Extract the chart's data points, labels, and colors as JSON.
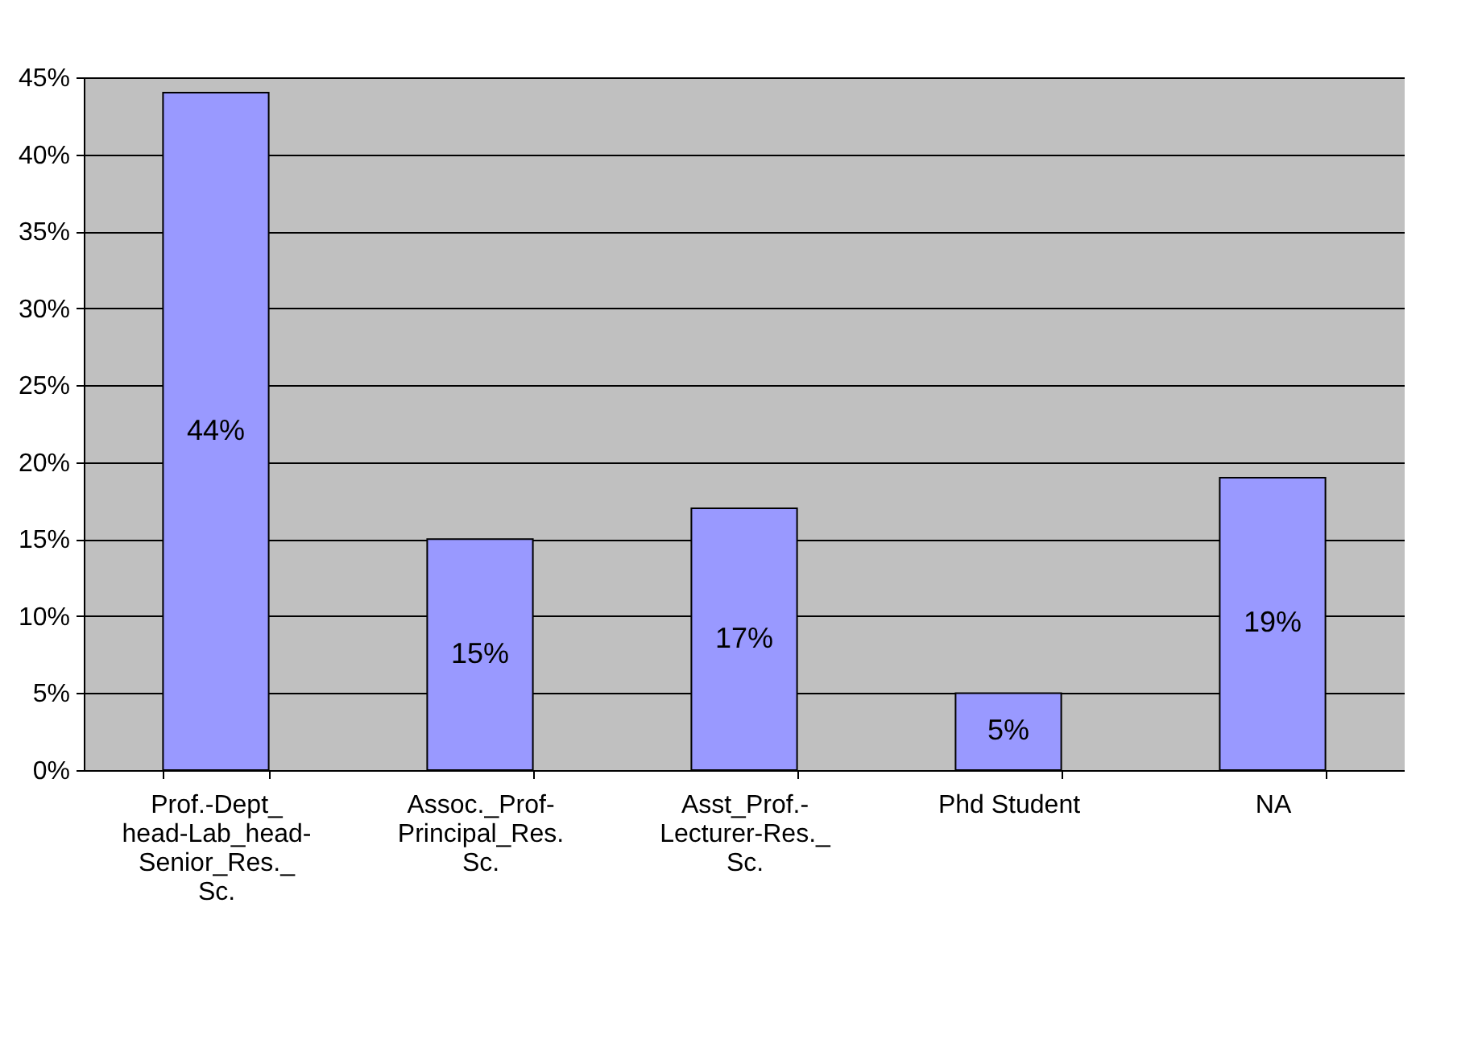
{
  "chart_data": {
    "type": "bar",
    "categories": [
      "Prof.-Dept_head-Lab_head-Senior_Res._Sc.",
      "Assoc._Prof-Principal_Res. Sc.",
      "Asst_Prof.-Lecturer-Res._Sc.",
      "Phd Student",
      "NA"
    ],
    "values": [
      44,
      15,
      17,
      5,
      19
    ],
    "value_labels": [
      "44%",
      "15%",
      "17%",
      "5%",
      "19%"
    ],
    "color": "#9999ff",
    "ylim": [
      0,
      45
    ],
    "yticks": [
      {
        "value": 0,
        "label": "0%"
      },
      {
        "value": 5,
        "label": "5%"
      },
      {
        "value": 10,
        "label": "10%"
      },
      {
        "value": 15,
        "label": "15%"
      },
      {
        "value": 20,
        "label": "20%"
      },
      {
        "value": 25,
        "label": "25%"
      },
      {
        "value": 30,
        "label": "30%"
      },
      {
        "value": 35,
        "label": "35%"
      },
      {
        "value": 40,
        "label": "40%"
      },
      {
        "value": 45,
        "label": "45%"
      }
    ],
    "grid": "y"
  }
}
